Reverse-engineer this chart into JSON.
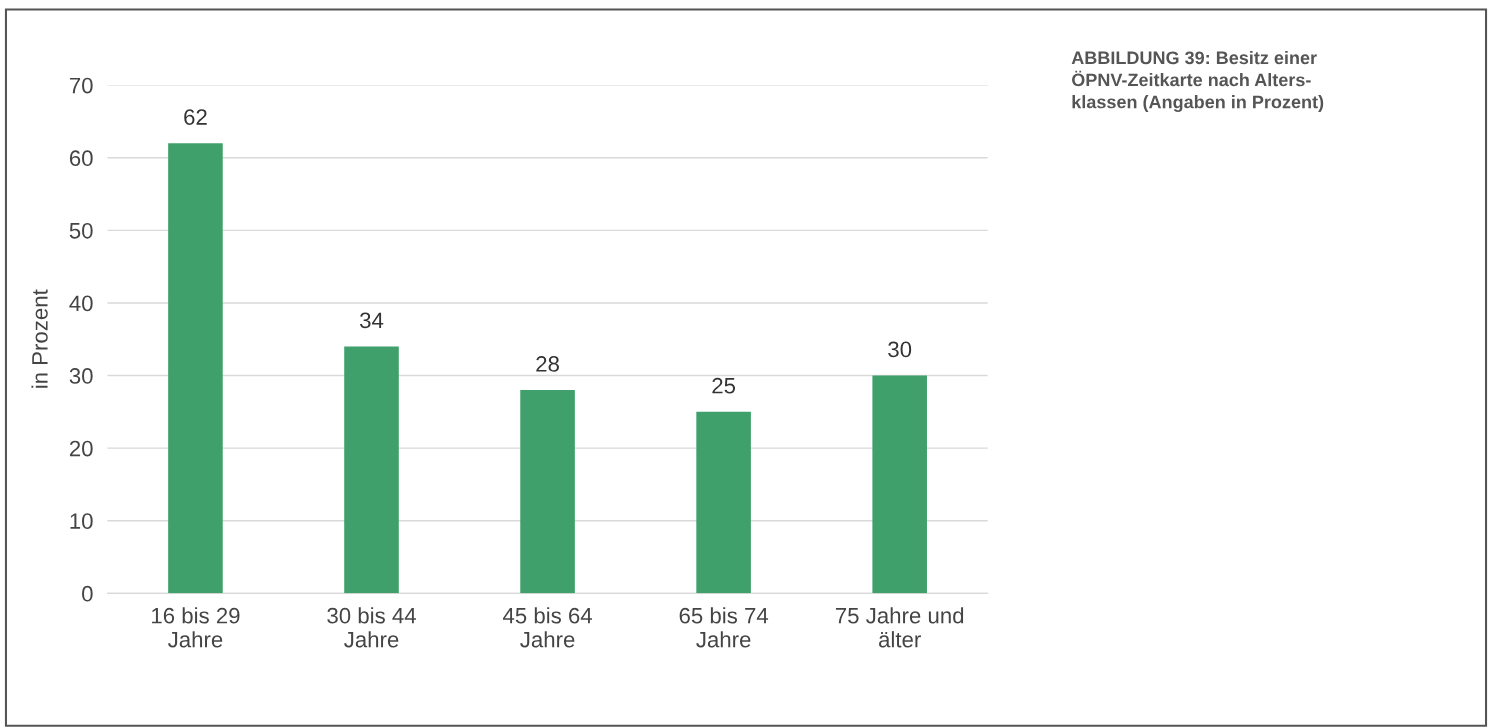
{
  "chart_data": {
    "type": "bar",
    "title": "ABBILDUNG 39: Besitz einer\nÖPNV-Zeitkarte nach Alters-\nklassen (Angaben in Prozent)",
    "ylabel": "in Prozent",
    "categories": [
      "16 bis 29\nJahre",
      "30 bis 44\nJahre",
      "45 bis 64\nJahre",
      "65 bis 74\nJahre",
      "75 Jahre und\nälter"
    ],
    "values": [
      62,
      34,
      28,
      25,
      30
    ],
    "color": "#3fa06b",
    "ylim": [
      0,
      70
    ],
    "yticks": [
      0,
      10,
      20,
      30,
      40,
      50,
      60,
      70
    ],
    "grid": "y",
    "data_labels": true
  }
}
